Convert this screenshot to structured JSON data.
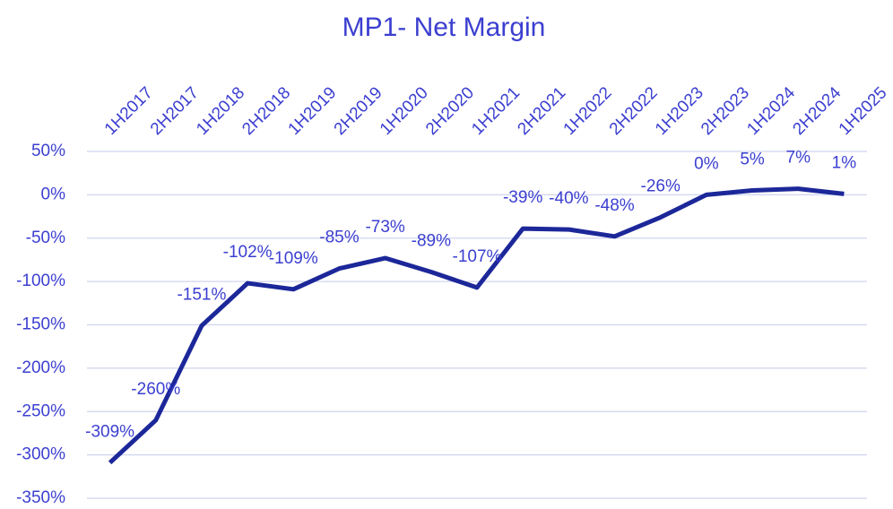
{
  "chart_data": {
    "type": "line",
    "title": "MP1- Net Margin",
    "categories": [
      "1H2017",
      "2H2017",
      "1H2018",
      "2H2018",
      "1H2019",
      "2H2019",
      "1H2020",
      "2H2020",
      "1H2021",
      "2H2021",
      "1H2022",
      "2H2022",
      "1H2023",
      "2H2023",
      "1H2024",
      "2H2024",
      "1H2025"
    ],
    "series": [
      {
        "name": "Net Margin",
        "color": "#1c2799",
        "values": [
          -309,
          -260,
          -151,
          -102,
          -109,
          -85,
          -73,
          -89,
          -107,
          -39,
          -40,
          -48,
          -26,
          0,
          5,
          7,
          1
        ],
        "value_labels": [
          "-309%",
          "-260%",
          "-151%",
          "-102%",
          "-109%",
          "-85%",
          "-73%",
          "-89%",
          "-107%",
          "-39%",
          "-40%",
          "-48%",
          "-26%",
          "0%",
          "5%",
          "7%",
          "1%"
        ]
      }
    ],
    "ylim": [
      -350,
      50
    ],
    "yticks": [
      {
        "value": 50,
        "label": "50%"
      },
      {
        "value": 0,
        "label": "0%"
      },
      {
        "value": -50,
        "label": "-50%"
      },
      {
        "value": -100,
        "label": "-100%"
      },
      {
        "value": -150,
        "label": "-150%"
      },
      {
        "value": -200,
        "label": "-200%"
      },
      {
        "value": -250,
        "label": "-250%"
      },
      {
        "value": -300,
        "label": "-300%"
      },
      {
        "value": -350,
        "label": "-350%"
      }
    ],
    "grid": true
  }
}
